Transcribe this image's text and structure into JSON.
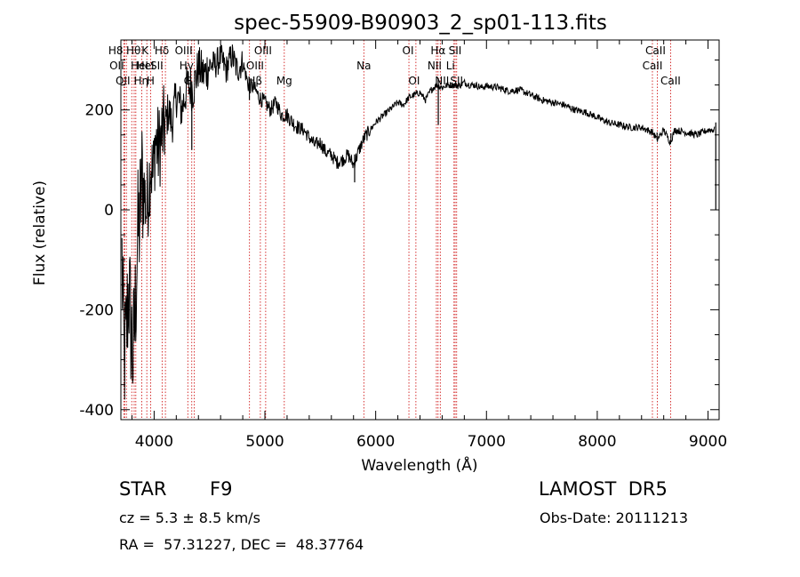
{
  "chart_data": {
    "type": "line",
    "title": "spec-55909-B90903_2_sp01-113.fits",
    "xlabel": "Wavelength (Å)",
    "ylabel": "Flux (relative)",
    "xlim": [
      3700,
      9100
    ],
    "ylim": [
      -420,
      340
    ],
    "x_ticks": [
      4000,
      5000,
      6000,
      7000,
      8000,
      9000
    ],
    "y_ticks": [
      -400,
      -200,
      0,
      200
    ],
    "x_minor_step": 200,
    "y_minor_step": 50,
    "grid": false,
    "line_color": "#000000",
    "marker_color": "#cc0000",
    "series": [
      {
        "x": [
          3710,
          3730,
          3750,
          3770,
          3790,
          3810,
          3830,
          3850,
          3870,
          3890,
          3910,
          3930,
          3950,
          3970,
          3990,
          4010,
          4040,
          4070,
          4100,
          4130,
          4160,
          4200,
          4250,
          4300,
          4350,
          4400,
          4450,
          4500,
          4550,
          4600,
          4650,
          4700,
          4750,
          4800,
          4850,
          4900,
          4950,
          5000,
          5050,
          5100,
          5150,
          5200,
          5250,
          5300,
          5350,
          5400,
          5450,
          5500,
          5550,
          5600,
          5650,
          5700,
          5750,
          5800,
          5850,
          5900,
          5950,
          6000,
          6050,
          6100,
          6150,
          6200,
          6250,
          6300,
          6350,
          6400,
          6450,
          6500,
          6550,
          6600,
          6650,
          6700,
          6750,
          6800,
          6850,
          6900,
          6950,
          7000,
          7100,
          7200,
          7300,
          7400,
          7500,
          7600,
          7700,
          7800,
          7900,
          8000,
          8100,
          8200,
          8300,
          8400,
          8500,
          8540,
          8600,
          8660,
          8700,
          8800,
          8900,
          9000,
          9060
        ],
        "y": [
          -100,
          -320,
          -250,
          -150,
          -230,
          -300,
          -200,
          -60,
          -20,
          60,
          40,
          0,
          40,
          100,
          60,
          140,
          120,
          150,
          170,
          200,
          170,
          230,
          200,
          250,
          240,
          285,
          270,
          290,
          290,
          305,
          280,
          310,
          280,
          295,
          250,
          245,
          225,
          215,
          200,
          215,
          190,
          190,
          175,
          165,
          160,
          145,
          130,
          135,
          115,
          110,
          95,
          100,
          110,
          90,
          120,
          145,
          160,
          175,
          185,
          195,
          205,
          215,
          210,
          225,
          230,
          235,
          220,
          240,
          250,
          245,
          250,
          250,
          248,
          255,
          250,
          250,
          245,
          248,
          245,
          238,
          240,
          230,
          220,
          215,
          210,
          200,
          195,
          185,
          175,
          170,
          165,
          165,
          155,
          140,
          160,
          135,
          160,
          155,
          150,
          160,
          160
        ]
      }
    ],
    "dips": [
      {
        "x": 4340,
        "y": 120
      },
      {
        "x": 4860,
        "y": 220
      },
      {
        "x": 5810,
        "y": 55
      },
      {
        "x": 6565,
        "y": 170
      },
      {
        "x": 8540,
        "y": 140
      },
      {
        "x": 8665,
        "y": 140
      },
      {
        "x": 9070,
        "y": 0
      }
    ],
    "lines": [
      {
        "x": 3750,
        "label": "H8",
        "row": 0,
        "dx": -12
      },
      {
        "x": 3727,
        "label": "OII",
        "row": 1,
        "dx": -8
      },
      {
        "x": 3734,
        "label": "OII",
        "row": 2,
        "dx": -2
      },
      {
        "x": 3798,
        "label": "Hθ",
        "row": 0,
        "dx": 2
      },
      {
        "x": 3820,
        "label": "HeI",
        "row": 1,
        "dx": 6
      },
      {
        "x": 3835,
        "label": "Hη",
        "row": 2,
        "dx": 6
      },
      {
        "x": 3934,
        "label": "K",
        "row": 0,
        "dx": -2
      },
      {
        "x": 3889,
        "label": "HeI",
        "row": 1,
        "dx": 4
      },
      {
        "x": 3968,
        "label": "H",
        "row": 2,
        "dx": 0
      },
      {
        "x": 4072,
        "label": "SII",
        "row": 1,
        "dx": -6
      },
      {
        "x": 4102,
        "label": "Hδ",
        "row": 0,
        "dx": -4
      },
      {
        "x": 4340,
        "label": "Hγ",
        "row": 1,
        "dx": -6
      },
      {
        "x": 4363,
        "label": "OIII",
        "row": 0,
        "dx": -12
      },
      {
        "x": 4304,
        "label": "G",
        "row": 2,
        "dx": 0
      },
      {
        "x": 4861,
        "label": "Hβ",
        "row": 2,
        "dx": 6
      },
      {
        "x": 4959,
        "label": "OIII",
        "row": 1,
        "dx": -6
      },
      {
        "x": 5007,
        "label": "OIII",
        "row": 0,
        "dx": -3
      },
      {
        "x": 5175,
        "label": "Mg",
        "row": 2,
        "dx": 0
      },
      {
        "x": 5893,
        "label": "Na",
        "row": 1,
        "dx": 0
      },
      {
        "x": 6300,
        "label": "OI",
        "row": 0,
        "dx": -1
      },
      {
        "x": 6363,
        "label": "OI",
        "row": 2,
        "dx": -2
      },
      {
        "x": 6548,
        "label": "NII",
        "row": 1,
        "dx": -2
      },
      {
        "x": 6563,
        "label": "Hα",
        "row": 0,
        "dx": 0
      },
      {
        "x": 6583,
        "label": "NII",
        "row": 2,
        "dx": 2
      },
      {
        "x": 6707,
        "label": "Li",
        "row": 1,
        "dx": -4
      },
      {
        "x": 6717,
        "label": "SII",
        "row": 0,
        "dx": 0
      },
      {
        "x": 6731,
        "label": "SII",
        "row": 2,
        "dx": 0
      },
      {
        "x": 8498,
        "label": "CaII",
        "row": 1,
        "dx": 0
      },
      {
        "x": 8542,
        "label": "CaII",
        "row": 0,
        "dx": -2
      },
      {
        "x": 8662,
        "label": "CaII",
        "row": 2,
        "dx": 0
      }
    ]
  },
  "info": {
    "object_class": "STAR",
    "subclass": "F9",
    "survey": "LAMOST  DR5",
    "redshift": "cz = 5.3 ± 8.5 km/s",
    "obs_date": "Obs-Date: 20111213",
    "coords": "RA =  57.31227, DEC =  48.37764"
  }
}
